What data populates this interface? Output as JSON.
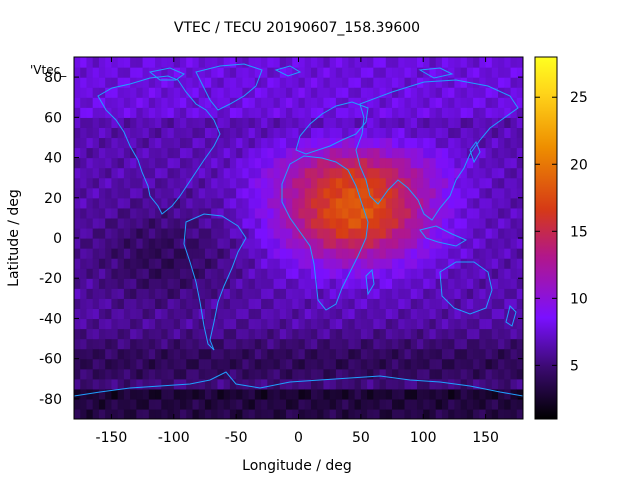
{
  "chart_data": {
    "type": "heatmap",
    "title": "VTEC / TECU 20190607_158.39600",
    "xlabel": "Longitude / deg",
    "ylabel": "Latitude / deg",
    "series_key": "'Vtec_",
    "xlim": [
      -180,
      180
    ],
    "ylim": [
      -90,
      90
    ],
    "x_ticks": [
      -150,
      -100,
      -50,
      0,
      50,
      100,
      150
    ],
    "y_ticks": [
      -80,
      -60,
      -40,
      -20,
      0,
      20,
      40,
      60,
      80
    ],
    "colorbar_ticks": [
      5,
      10,
      15,
      20,
      25
    ],
    "colorbar_range": [
      1,
      28
    ],
    "colormap": [
      "#000000",
      "#3a0a6e",
      "#7a10ff",
      "#b2178a",
      "#d63a16",
      "#ee8e00",
      "#ffd41a",
      "#ffff20"
    ],
    "coastline_color": "#1fa0ff",
    "grid_resolution_deg": 5,
    "field_model": {
      "description_units": "TECU",
      "background": 6.5,
      "peak": {
        "value": 18.5,
        "center_lon": 45,
        "center_lat": 12
      }
    }
  }
}
